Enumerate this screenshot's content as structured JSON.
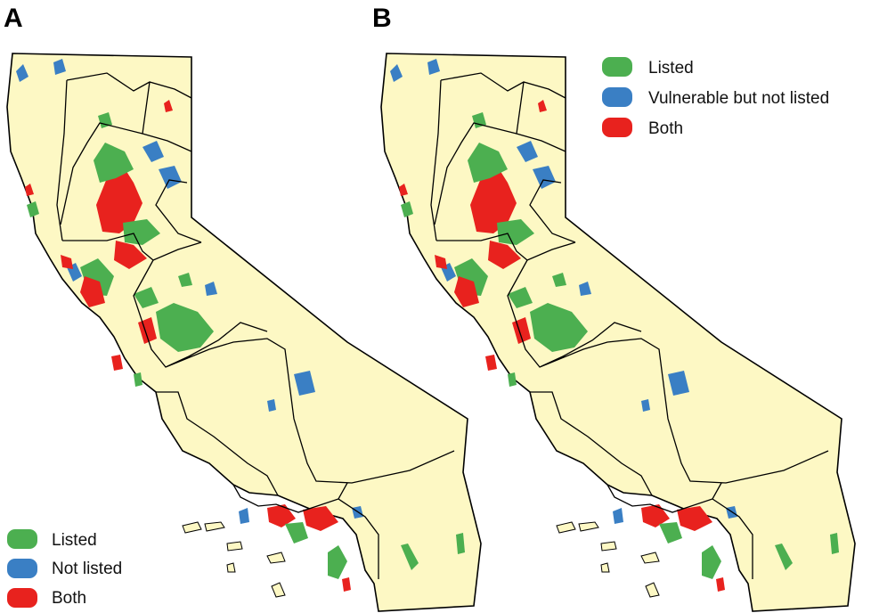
{
  "panels": [
    {
      "label": "A",
      "legend": [
        {
          "label": "Listed",
          "color": "#4caf50"
        },
        {
          "label": "Not listed",
          "color": "#3a7fc4"
        },
        {
          "label": "Both",
          "color": "#e8221e"
        }
      ]
    },
    {
      "label": "B",
      "legend": [
        {
          "label": "Listed",
          "color": "#4caf50"
        },
        {
          "label": "Vulnerable but not listed",
          "color": "#3a7fc4"
        },
        {
          "label": "Both",
          "color": "#e8221e"
        }
      ]
    }
  ],
  "map": {
    "land_color": "#fdf8c4",
    "border_color": "#000000"
  }
}
